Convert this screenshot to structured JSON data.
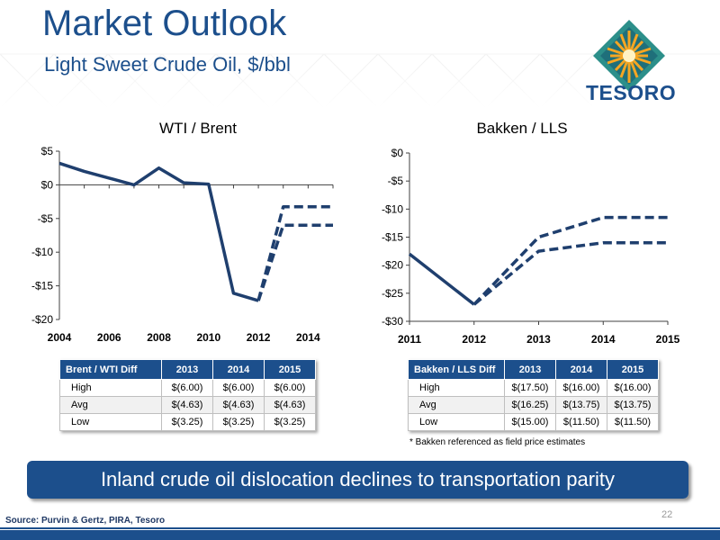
{
  "header": {
    "title": "Market Outlook",
    "subtitle": "Light Sweet Crude Oil, $/bbl",
    "logo_text": "TESORO"
  },
  "colors": {
    "brand_blue": "#1c4f8c",
    "series_blue": "#1f3f6e",
    "logo_orange": "#f5a623",
    "logo_teal": "#2c8f8a"
  },
  "chart_data": [
    {
      "type": "line",
      "title": "WTI / Brent",
      "xlabel": "",
      "ylabel": "",
      "xlim": [
        2004,
        2015
      ],
      "ylim": [
        -20,
        5
      ],
      "x_ticks": [
        2004,
        2006,
        2008,
        2010,
        2012,
        2014
      ],
      "x_tick_labels": [
        "2004",
        "2006",
        "2008",
        "2010",
        "2012",
        "2014"
      ],
      "y_ticks": [
        5,
        0,
        -5,
        -10,
        -15,
        -20
      ],
      "y_tick_labels": [
        "$5",
        "$0",
        "-$5",
        "-$10",
        "-$15",
        "-$20"
      ],
      "series": [
        {
          "style": "solid",
          "x": [
            2004,
            2005,
            2006,
            2007,
            2008,
            2009,
            2010,
            2011,
            2012
          ],
          "y": [
            3.2,
            2.0,
            1.0,
            0.0,
            2.5,
            0.3,
            0.1,
            -16.1,
            -17.2
          ]
        },
        {
          "style": "dashed",
          "x": [
            2012,
            2013,
            2014,
            2015
          ],
          "y": [
            -17.2,
            -3.25,
            -3.25,
            -3.25
          ]
        },
        {
          "style": "dashed",
          "x": [
            2012,
            2013,
            2014,
            2015
          ],
          "y": [
            -17.2,
            -6.0,
            -6.0,
            -6.0
          ]
        }
      ],
      "legend": "none",
      "grid": false
    },
    {
      "type": "line",
      "title": "Bakken / LLS",
      "xlabel": "",
      "ylabel": "",
      "xlim": [
        2011,
        2015
      ],
      "ylim": [
        -30,
        0
      ],
      "x_ticks": [
        2011,
        2012,
        2013,
        2014,
        2015
      ],
      "x_tick_labels": [
        "2011",
        "2012",
        "2013",
        "2014",
        "2015"
      ],
      "y_ticks": [
        0,
        -5,
        -10,
        -15,
        -20,
        -25,
        -30
      ],
      "y_tick_labels": [
        "$0",
        "-$5",
        "-$10",
        "-$15",
        "-$20",
        "-$25",
        "-$30"
      ],
      "series": [
        {
          "style": "solid",
          "x": [
            2011,
            2012
          ],
          "y": [
            -18.0,
            -27.0
          ]
        },
        {
          "style": "dashed",
          "x": [
            2012,
            2013,
            2014,
            2015
          ],
          "y": [
            -27.0,
            -15.0,
            -11.5,
            -11.5
          ]
        },
        {
          "style": "dashed",
          "x": [
            2012,
            2013,
            2014,
            2015
          ],
          "y": [
            -27.0,
            -17.5,
            -16.0,
            -16.0
          ]
        }
      ],
      "legend": "none",
      "grid": false
    }
  ],
  "tables": {
    "wti": {
      "headers": [
        "Brent / WTI Diff",
        "2013",
        "2014",
        "2015"
      ],
      "rows": [
        [
          "High",
          "$(6.00)",
          "$(6.00)",
          "$(6.00)"
        ],
        [
          "Avg",
          "$(4.63)",
          "$(4.63)",
          "$(4.63)"
        ],
        [
          "Low",
          "$(3.25)",
          "$(3.25)",
          "$(3.25)"
        ]
      ]
    },
    "bakken": {
      "headers": [
        "Bakken / LLS Diff",
        "2013",
        "2014",
        "2015"
      ],
      "rows": [
        [
          "High",
          "$(17.50)",
          "$(16.00)",
          "$(16.00)"
        ],
        [
          "Avg",
          "$(16.25)",
          "$(13.75)",
          "$(13.75)"
        ],
        [
          "Low",
          "$(15.00)",
          "$(11.50)",
          "$(11.50)"
        ]
      ]
    }
  },
  "footnote": "* Bakken referenced as field price estimates",
  "banner": "Inland crude oil dislocation declines to transportation parity",
  "page_number": "22",
  "source": "Source: Purvin & Gertz, PIRA, Tesoro"
}
